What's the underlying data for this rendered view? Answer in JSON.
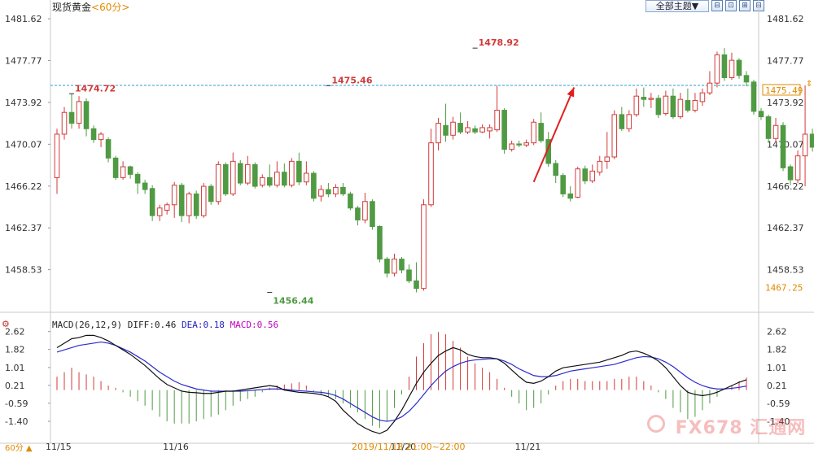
{
  "header": {
    "instrument": "现货黄金",
    "period": "<60分>",
    "theme_select": "全部主题▼",
    "buttons": [
      "⊟",
      "⊡",
      "⊞",
      "⊟"
    ]
  },
  "colors": {
    "up": "#d23a3a",
    "down": "#4f9a43",
    "dea": "#2b2bd0",
    "diff": "#111111",
    "price_line": "#2a9fd0",
    "label_down": "#4f9a43",
    "macd_label": "#c000c0"
  },
  "chart_data": [
    {
      "type": "candlestick",
      "title": "现货黄金 <60分>",
      "y_ticks": [
        "1481.62",
        "1477.77",
        "1473.92",
        "1470.07",
        "1466.22",
        "1462.37",
        "1458.53"
      ],
      "ylim": [
        1455.5,
        1482.3
      ],
      "x_tick_labels": [
        "11/15",
        "11/16",
        "11/20",
        "11/21"
      ],
      "x_tick_index": [
        0,
        16,
        47,
        64
      ],
      "current_price_label": "1475.49",
      "current_price": 1475.49,
      "lower_right_label": "1467.25",
      "annotations": [
        {
          "text": "1474.72",
          "index": 2,
          "value": 1474.72
        },
        {
          "text": "1475.46",
          "index": 37,
          "value": 1475.46
        },
        {
          "text": "1478.92",
          "index": 57,
          "value": 1478.92
        },
        {
          "text": "1456.44",
          "index": 29,
          "value": 1456.44
        }
      ],
      "trend_arrow": {
        "from_index": 65,
        "from_value": 1466.6,
        "to_index": 70.5,
        "to_value": 1475.3
      },
      "candles": [
        [
          1467,
          1471,
          1465.5,
          1471.5
        ],
        [
          1471,
          1473,
          1470.5,
          1473.5
        ],
        [
          1473,
          1472,
          1471.5,
          1474.7
        ],
        [
          1472,
          1474,
          1471.5,
          1474.5
        ],
        [
          1474,
          1471.5,
          1470.8,
          1474.3
        ],
        [
          1471.5,
          1470.5,
          1470.2,
          1471.8
        ],
        [
          1470.5,
          1471,
          1469.8,
          1471.2
        ],
        [
          1470.5,
          1468.8,
          1468.4,
          1470.7
        ],
        [
          1468.8,
          1467,
          1466.8,
          1469
        ],
        [
          1467,
          1468,
          1466.8,
          1468.5
        ],
        [
          1468,
          1467.3,
          1466.9,
          1468.1
        ],
        [
          1467.3,
          1466.5,
          1465.5,
          1467.5
        ],
        [
          1466.5,
          1465.9,
          1465.5,
          1466.8
        ],
        [
          1466,
          1463.5,
          1463,
          1466.3
        ],
        [
          1463.5,
          1464.2,
          1463,
          1464.5
        ],
        [
          1464,
          1464.5,
          1463.6,
          1464.7
        ],
        [
          1464.5,
          1466.3,
          1463.3,
          1466.6
        ],
        [
          1466.3,
          1463.5,
          1462.9,
          1466.5
        ],
        [
          1463.5,
          1465.5,
          1462.8,
          1465.7
        ],
        [
          1465.5,
          1463.5,
          1463.2,
          1465.8
        ],
        [
          1463.5,
          1466.2,
          1463.3,
          1466.5
        ],
        [
          1466.2,
          1464.8,
          1464.5,
          1466.4
        ],
        [
          1464.8,
          1468.2,
          1464.5,
          1468.5
        ],
        [
          1468.2,
          1465.5,
          1465.3,
          1468.4
        ],
        [
          1465.5,
          1468.5,
          1465.3,
          1469.3
        ],
        [
          1468.3,
          1466.5,
          1466.3,
          1468.6
        ],
        [
          1466.5,
          1468.2,
          1466.3,
          1469
        ],
        [
          1468.2,
          1466.2,
          1466,
          1468.4
        ],
        [
          1466.3,
          1467,
          1466.1,
          1467.3
        ],
        [
          1467,
          1466.3,
          1466.1,
          1468.2
        ],
        [
          1466.3,
          1467.5,
          1466.1,
          1468.5
        ],
        [
          1467.5,
          1466.3,
          1466.1,
          1468.3
        ],
        [
          1466.3,
          1468.5,
          1466.1,
          1468.8
        ],
        [
          1468.5,
          1466.6,
          1466.3,
          1469.3
        ],
        [
          1466.6,
          1467.4,
          1466.3,
          1468.5
        ],
        [
          1467.4,
          1465.1,
          1464.8,
          1467.6
        ],
        [
          1465.3,
          1465.9,
          1464.8,
          1466.3
        ],
        [
          1465.9,
          1465.5,
          1465.2,
          1466.5
        ],
        [
          1465.5,
          1466.1,
          1465.2,
          1466.4
        ],
        [
          1466.1,
          1465.5,
          1465.3,
          1466.5
        ],
        [
          1465.5,
          1464.2,
          1464,
          1465.7
        ],
        [
          1464.2,
          1463.1,
          1462.6,
          1464.4
        ],
        [
          1463.1,
          1464.8,
          1462.8,
          1465.6
        ],
        [
          1464.8,
          1462.5,
          1462.2,
          1465
        ],
        [
          1462.5,
          1459.5,
          1459.2,
          1462.6
        ],
        [
          1459.5,
          1458.2,
          1457.8,
          1459.7
        ],
        [
          1458.2,
          1459.5,
          1457.9,
          1460
        ],
        [
          1459.5,
          1458.5,
          1458.2,
          1459.7
        ],
        [
          1458.5,
          1457.5,
          1457.3,
          1459
        ],
        [
          1457.5,
          1456.8,
          1456.44,
          1459.2
        ]
      ],
      "candles_note": "",
      "candles_part2": [
        [
          1456.8,
          1464.5,
          1456.6,
          1465
        ],
        [
          1464.5,
          1470.2,
          1464.3,
          1471.5
        ],
        [
          1470.2,
          1472,
          1469.5,
          1472.5
        ],
        [
          1471.8,
          1470.9,
          1470.3,
          1473.8
        ],
        [
          1470.9,
          1472.1,
          1470.5,
          1472.6
        ],
        [
          1472,
          1471.2,
          1471,
          1473
        ],
        [
          1471.2,
          1471.6,
          1471,
          1472.2
        ],
        [
          1471.5,
          1471.2,
          1471,
          1471.8
        ],
        [
          1471.2,
          1471.6,
          1471.1,
          1471.9
        ],
        [
          1471.3,
          1471.6,
          1470.6,
          1471.9
        ],
        [
          1471.4,
          1473.2,
          1471.2,
          1475.46
        ],
        [
          1473.2,
          1469.6,
          1469.2,
          1473.4
        ],
        [
          1469.6,
          1470.1,
          1469.4,
          1470.4
        ],
        [
          1470.1,
          1470,
          1469.8,
          1470.4
        ],
        [
          1470,
          1470.2,
          1469.8,
          1470.5
        ],
        [
          1470.2,
          1472.1,
          1470,
          1472.4
        ],
        [
          1472,
          1470.4,
          1470.2,
          1473
        ],
        [
          1470.5,
          1468.3,
          1468,
          1471.2
        ],
        [
          1468.3,
          1467.2,
          1466.5,
          1468.6
        ],
        [
          1467.2,
          1465.5,
          1465.2,
          1467.4
        ],
        [
          1465.5,
          1465.1,
          1464.8,
          1466.2
        ],
        [
          1465.2,
          1467.8,
          1465.1,
          1468
        ],
        [
          1467.8,
          1466.7,
          1466.4,
          1468.1
        ],
        [
          1466.7,
          1467.6,
          1466.5,
          1468.2
        ],
        [
          1467.5,
          1468.5,
          1467.2,
          1469
        ],
        [
          1468.5,
          1468.9,
          1467.8,
          1471.2
        ],
        [
          1468.9,
          1472.8,
          1468.7,
          1473.2
        ],
        [
          1472.8,
          1471.5,
          1471.3,
          1473.5
        ],
        [
          1471.5,
          1472.8,
          1471.2,
          1473.2
        ],
        [
          1472.8,
          1474.5,
          1472.6,
          1475.2
        ],
        [
          1474.4,
          1474.2,
          1473.5,
          1475.3
        ],
        [
          1474.2,
          1474.3,
          1473.4,
          1474.8
        ],
        [
          1474.3,
          1472.8,
          1472.5,
          1474.6
        ],
        [
          1472.9,
          1474.5,
          1472.7,
          1475
        ],
        [
          1474.5,
          1472.6,
          1472.4,
          1475.2
        ],
        [
          1472.6,
          1474.2,
          1472.4,
          1474.8
        ],
        [
          1474.1,
          1473.2,
          1473,
          1475.2
        ],
        [
          1473.2,
          1474.1,
          1473,
          1474.8
        ],
        [
          1474,
          1474.8,
          1473.6,
          1475.2
        ],
        [
          1474.8,
          1475.7,
          1474.6,
          1476.8
        ],
        [
          1475.7,
          1478.3,
          1475.3,
          1478.6
        ],
        [
          1478.3,
          1476.2,
          1475.9,
          1478.92
        ],
        [
          1476.2,
          1477.8,
          1476,
          1478.5
        ],
        [
          1477.8,
          1476.4,
          1476.1,
          1478
        ],
        [
          1476.4,
          1475.8,
          1475.4,
          1476.8
        ]
      ],
      "candles_part3": [
        [
          1475.8,
          1473.1,
          1472.8,
          1476
        ],
        [
          1473.1,
          1472.6,
          1472.3,
          1473.4
        ],
        [
          1472.6,
          1470.6,
          1470.2,
          1472.8
        ],
        [
          1470.6,
          1471.8,
          1470.3,
          1472.5
        ],
        [
          1471.8,
          1467.9,
          1467.6,
          1472.1
        ],
        [
          1468,
          1466.8,
          1466.3,
          1468.2
        ],
        [
          1466.8,
          1469,
          1466.5,
          1469.5
        ],
        [
          1469,
          1471,
          1466.2,
          1475.5
        ],
        [
          1471,
          1469.8,
          1469.4,
          1471.5
        ],
        [
          1469.8,
          1470.8,
          1469.6,
          1471.3
        ],
        [
          1470.7,
          1472.4,
          1470.5,
          1472.8
        ],
        [
          1472.4,
          1474.1,
          1472.2,
          1474.5
        ],
        [
          1474.1,
          1473.8,
          1473.5,
          1474.7
        ],
        [
          1473.8,
          1475.2,
          1473.7,
          1475.4
        ],
        [
          1475.2,
          1475.49,
          1475,
          1475.6
        ]
      ]
    },
    {
      "type": "line+bar",
      "title": "MACD(26,12,9)",
      "legend": {
        "prefix": "MACD(26,12,9)",
        "diff": "DIFF:0.46",
        "dea": "DEA:0.18",
        "macd": "MACD:0.56"
      },
      "y_ticks": [
        "2.62",
        "1.82",
        "1.01",
        "0.21",
        "-0.59",
        "-1.40"
      ],
      "ylim": [
        -2.2,
        2.9
      ],
      "diff": [
        1.9,
        2.1,
        2.3,
        2.35,
        2.45,
        2.45,
        2.35,
        2.2,
        2.0,
        1.8,
        1.6,
        1.35,
        1.1,
        0.8,
        0.5,
        0.25,
        0.1,
        -0.05,
        -0.1,
        -0.12,
        -0.15,
        -0.15,
        -0.1,
        -0.05,
        -0.05,
        0.0,
        0.05,
        0.1,
        0.15,
        0.2,
        0.15,
        0.0,
        -0.05,
        -0.1,
        -0.12,
        -0.15,
        -0.2,
        -0.3,
        -0.5,
        -0.9,
        -1.2,
        -1.5,
        -1.7,
        -1.85,
        -1.95,
        -1.8,
        -1.4,
        -0.9,
        -0.3,
        0.3,
        0.8,
        1.2,
        1.55,
        1.75,
        1.9,
        1.8,
        1.6,
        1.5,
        1.45,
        1.45,
        1.4,
        1.2,
        0.9,
        0.6,
        0.35,
        0.3,
        0.4,
        0.6,
        0.85,
        1.0,
        1.05,
        1.1,
        1.15,
        1.2,
        1.25,
        1.35,
        1.45,
        1.55,
        1.7,
        1.75,
        1.65,
        1.5,
        1.3,
        1.0,
        0.6,
        0.2,
        -0.1,
        -0.2,
        -0.25,
        -0.2,
        -0.1,
        0.05,
        0.2,
        0.35,
        0.46
      ],
      "dea": [
        1.7,
        1.8,
        1.9,
        2.0,
        2.05,
        2.1,
        2.15,
        2.1,
        2.0,
        1.85,
        1.7,
        1.5,
        1.3,
        1.05,
        0.8,
        0.6,
        0.4,
        0.25,
        0.15,
        0.05,
        0.0,
        -0.05,
        -0.05,
        -0.05,
        -0.05,
        -0.05,
        -0.03,
        0.0,
        0.02,
        0.05,
        0.05,
        0.03,
        0.0,
        -0.03,
        -0.05,
        -0.08,
        -0.1,
        -0.15,
        -0.25,
        -0.4,
        -0.6,
        -0.8,
        -1.0,
        -1.2,
        -1.35,
        -1.4,
        -1.35,
        -1.2,
        -0.95,
        -0.6,
        -0.2,
        0.2,
        0.55,
        0.85,
        1.05,
        1.2,
        1.3,
        1.35,
        1.38,
        1.4,
        1.4,
        1.3,
        1.15,
        0.95,
        0.8,
        0.65,
        0.6,
        0.6,
        0.65,
        0.75,
        0.85,
        0.9,
        0.95,
        1.0,
        1.05,
        1.1,
        1.15,
        1.25,
        1.35,
        1.45,
        1.5,
        1.48,
        1.4,
        1.25,
        1.05,
        0.8,
        0.55,
        0.35,
        0.2,
        0.1,
        0.05,
        0.05,
        0.08,
        0.12,
        0.18
      ],
      "macd_bars": [
        0.6,
        0.8,
        1.0,
        0.8,
        0.7,
        0.6,
        0.4,
        0.2,
        0.1,
        -0.1,
        -0.3,
        -0.5,
        -0.7,
        -0.9,
        -1.2,
        -1.4,
        -1.5,
        -1.5,
        -1.5,
        -1.4,
        -1.3,
        -1.2,
        -1.1,
        -0.9,
        -0.7,
        -0.5,
        -0.4,
        -0.3,
        -0.1,
        0.1,
        0.2,
        0.25,
        0.3,
        0.35,
        0.2,
        -0.1,
        -0.2,
        -0.3,
        -0.4,
        -0.6,
        -0.8,
        -1.0,
        -1.3,
        -1.6,
        -1.7,
        -1.4,
        -0.8,
        -0.2,
        0.6,
        1.5,
        2.1,
        2.5,
        2.6,
        2.5,
        2.2,
        1.9,
        1.5,
        1.2,
        1.0,
        0.8,
        0.5,
        0.1,
        -0.3,
        -0.6,
        -0.9,
        -0.8,
        -0.6,
        -0.2,
        0.2,
        0.4,
        0.5,
        0.5,
        0.4,
        0.4,
        0.4,
        0.4,
        0.5,
        0.5,
        0.6,
        0.6,
        0.4,
        0.2,
        -0.1,
        -0.4,
        -0.8,
        -1.0,
        -1.3,
        -1.2,
        -0.9,
        -0.6,
        -0.3,
        0.0,
        0.2,
        0.4,
        0.56
      ],
      "x_tick_labels": [
        "11/15",
        "11/16",
        "11/20",
        "11/21"
      ],
      "bottom_label": "2019/11/18 21:00~22:00"
    }
  ],
  "bottom_bar": {
    "period_label": "60分 ▲",
    "time_range": "2019/11/18 21:00~22:00"
  },
  "watermark": "FX678 汇通网"
}
